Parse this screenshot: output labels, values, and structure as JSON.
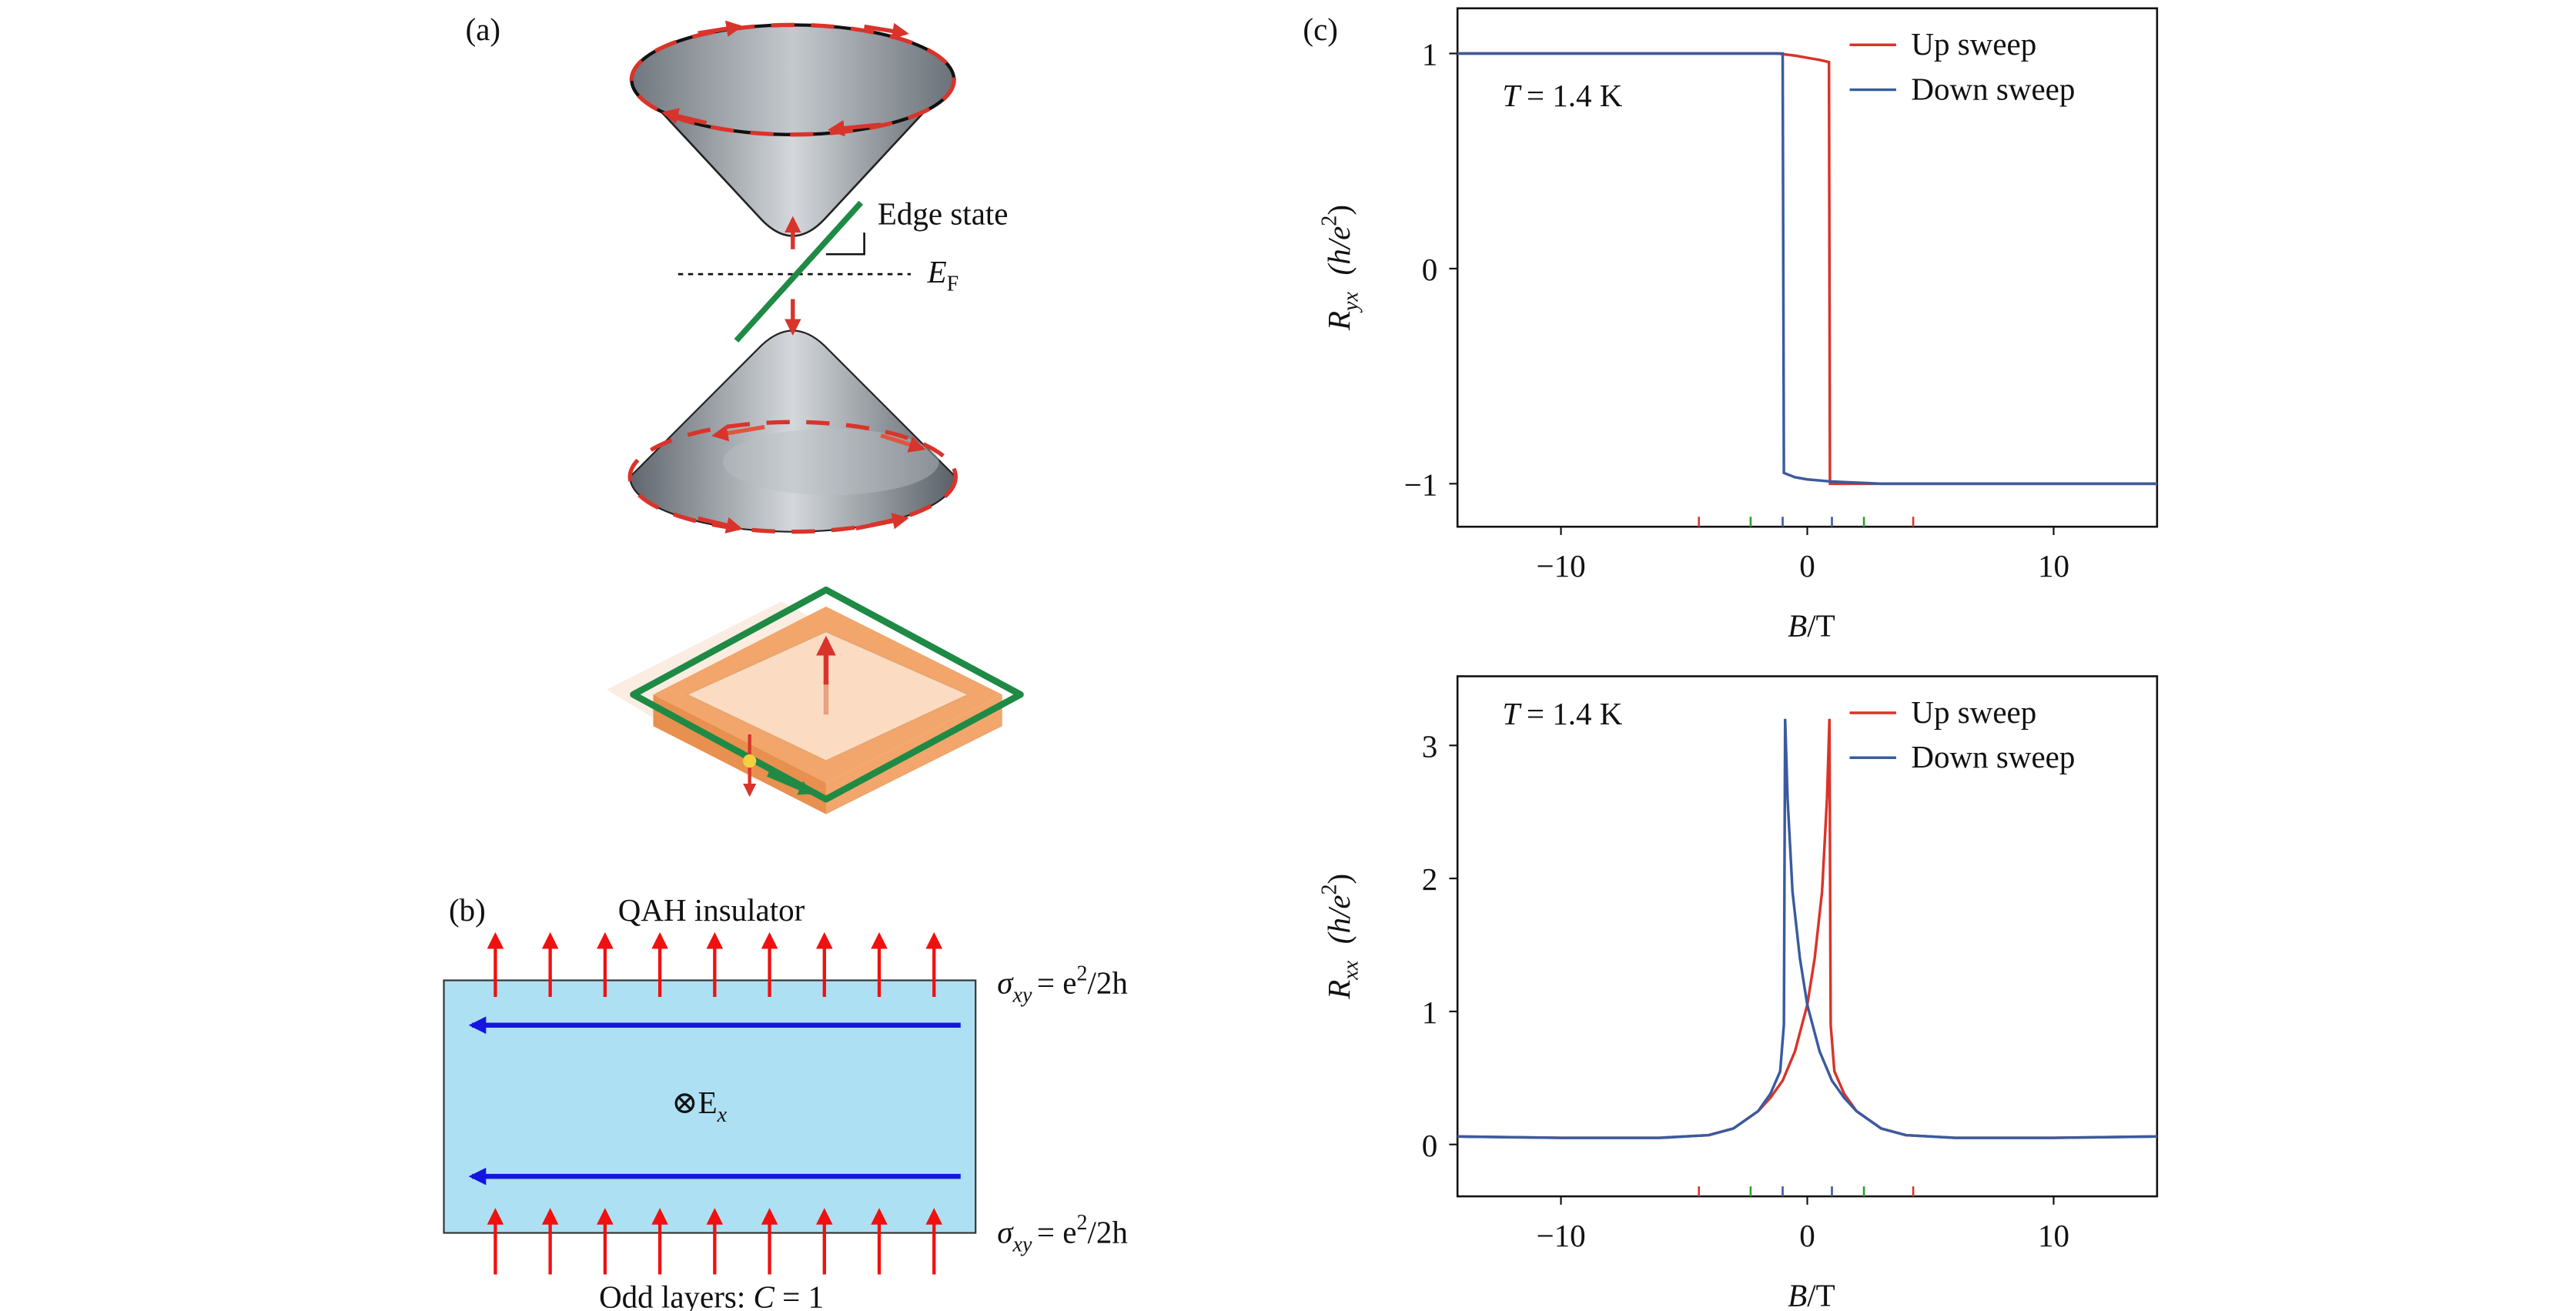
{
  "panel_a": {
    "label": "(a)",
    "edge_label": "Edge state",
    "fermi_label": {
      "symbol": "E",
      "subscript": "F"
    }
  },
  "panel_b": {
    "label": "(b)",
    "title": "QAH insulator",
    "top_label": {
      "symbol": "σ",
      "subscript": "xy",
      "rhs": "= e",
      "sup": "2",
      "tail": "/2h"
    },
    "bottom_label": {
      "symbol": "σ",
      "subscript": "xy",
      "rhs": "= e",
      "sup": "2",
      "tail": "/2h"
    },
    "field_label": {
      "symbol": "⊗E",
      "subscript": "x"
    },
    "caption": {
      "text": "Odd layers: ",
      "symbol": "C",
      "rest": " = 1"
    }
  },
  "panel_c": {
    "label": "(c)"
  },
  "chart_data": [
    {
      "type": "line",
      "xlabel": {
        "symbol": "B",
        "rest": "/T"
      },
      "ylabel": {
        "symbol": "R",
        "subscript": "yx",
        "unit": "(h/e",
        "sup": "2",
        "close": ")"
      },
      "annotation": {
        "symbol": "T",
        "rest": "= 1.4 K"
      },
      "xlim": [
        -14.2,
        14.2
      ],
      "ylim": [
        -1.2,
        1.21
      ],
      "xticks": [
        {
          "value": -10,
          "label": "−10"
        },
        0,
        10
      ],
      "yticks": [
        {
          "value": -1,
          "label": "−1"
        },
        0,
        1
      ],
      "x_markers": {
        "values": [
          -4.4,
          -2.3,
          -1,
          1,
          2.3,
          4.3
        ],
        "colors": [
          "#d9342b",
          "#2ca02c",
          "#3a5ba0",
          "#3a5ba0",
          "#2ca02c",
          "#d9342b"
        ]
      },
      "series": [
        {
          "name": "Up sweep",
          "color": "#d9342b",
          "x": [
            -14.2,
            -1.2,
            -0.5,
            0,
            0.5,
            0.88,
            0.92,
            3,
            14.2
          ],
          "values": [
            1,
            1,
            0.99,
            0.98,
            0.97,
            0.96,
            -1,
            -1,
            -1
          ]
        },
        {
          "name": "Down sweep",
          "color": "#3a5ba0",
          "x": [
            14.2,
            3,
            2,
            1,
            0,
            -0.5,
            -0.95,
            -1.0,
            -1.3,
            -14.2
          ],
          "values": [
            -1,
            -1,
            -0.995,
            -0.99,
            -0.98,
            -0.97,
            -0.95,
            1,
            1,
            1
          ]
        }
      ]
    },
    {
      "type": "line",
      "xlabel": {
        "symbol": "B",
        "rest": "/T"
      },
      "ylabel": {
        "symbol": "R",
        "subscript": "xx",
        "unit": "(h/e",
        "sup": "2",
        "close": ")"
      },
      "annotation": {
        "symbol": "T",
        "rest": "= 1.4 K"
      },
      "xlim": [
        -14.2,
        14.2
      ],
      "ylim": [
        -0.39,
        3.52
      ],
      "xticks": [
        {
          "value": -10,
          "label": "−10"
        },
        0,
        10
      ],
      "yticks": [
        0,
        1,
        2,
        3
      ],
      "x_markers": {
        "values": [
          -4.4,
          -2.3,
          -1,
          1,
          2.3,
          4.3
        ],
        "colors": [
          "#d9342b",
          "#2ca02c",
          "#3a5ba0",
          "#3a5ba0",
          "#2ca02c",
          "#d9342b"
        ]
      },
      "series": [
        {
          "name": "Up sweep",
          "color": "#d9342b",
          "x": [
            -14.2,
            -10,
            -6,
            -4,
            -3,
            -2,
            -1.5,
            -1,
            -0.5,
            0,
            0.3,
            0.6,
            0.8,
            0.9,
            0.95,
            1.1,
            1.5,
            2,
            3,
            4,
            6,
            10,
            14.2
          ],
          "values": [
            0.06,
            0.05,
            0.05,
            0.07,
            0.12,
            0.25,
            0.35,
            0.48,
            0.7,
            1.05,
            1.4,
            1.9,
            2.6,
            3.2,
            0.9,
            0.55,
            0.38,
            0.25,
            0.12,
            0.07,
            0.05,
            0.05,
            0.06
          ]
        },
        {
          "name": "Down sweep",
          "color": "#3a5ba0",
          "x": [
            14.2,
            10,
            6,
            4,
            3,
            2,
            1.5,
            1,
            0.5,
            0,
            -0.3,
            -0.6,
            -0.8,
            -0.9,
            -0.95,
            -1.1,
            -1.5,
            -2,
            -3,
            -4,
            -6,
            -10,
            -14.2
          ],
          "values": [
            0.06,
            0.05,
            0.05,
            0.07,
            0.12,
            0.25,
            0.35,
            0.48,
            0.7,
            1.05,
            1.4,
            1.9,
            2.6,
            3.2,
            0.9,
            0.55,
            0.38,
            0.25,
            0.12,
            0.07,
            0.05,
            0.05,
            0.06
          ]
        }
      ]
    }
  ]
}
